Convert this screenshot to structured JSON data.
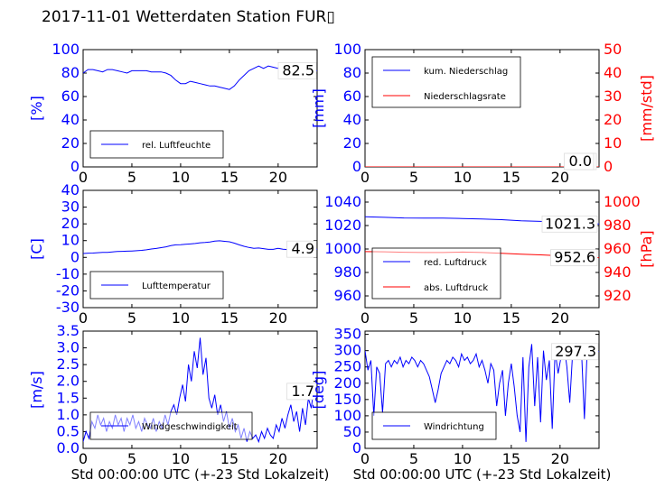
{
  "figure": {
    "title": "2017-11-01 Wetterdaten Station FUR▯",
    "x_axis_label": "Std 00:00:00 UTC (+-23 Std Lokalzeit)",
    "colors": {
      "primary": "#0000ff",
      "secondary": "#ff0000",
      "light": "#8888ff",
      "axis": "#000000"
    }
  },
  "chart_data": [
    {
      "id": "humidity",
      "type": "line",
      "ylabel": "[%]",
      "ylim": [
        0,
        100
      ],
      "yticks": [
        0,
        20,
        40,
        60,
        80,
        100
      ],
      "xlim": [
        0,
        24
      ],
      "xticks": [
        0,
        5,
        10,
        15,
        20
      ],
      "value_label": "82.5",
      "legend_position": "lower-left",
      "series": [
        {
          "name": "rel. Luftfeuchte",
          "axis": "left",
          "color": "#0000ff",
          "x": [
            0,
            0.5,
            1,
            1.5,
            2,
            2.5,
            3,
            3.5,
            4,
            4.5,
            5,
            5.5,
            6,
            6.5,
            7,
            7.5,
            8,
            8.5,
            9,
            9.5,
            10,
            10.5,
            11,
            11.5,
            12,
            12.5,
            13,
            13.5,
            14,
            14.5,
            15,
            15.5,
            16,
            16.5,
            17,
            17.5,
            18,
            18.5,
            19,
            19.5,
            20,
            20.5,
            21,
            21.5,
            22,
            22.5,
            23,
            23.5,
            24
          ],
          "y": [
            80,
            83,
            83,
            82,
            81,
            83,
            83,
            82,
            81,
            80,
            82,
            82,
            82,
            82,
            81,
            81,
            81,
            80,
            78,
            74,
            71,
            71,
            73,
            72,
            71,
            70,
            69,
            69,
            68,
            67,
            66,
            69,
            74,
            78,
            82,
            84,
            86,
            84,
            86,
            85,
            84,
            79,
            78,
            80,
            81,
            82,
            82,
            82,
            82
          ]
        }
      ]
    },
    {
      "id": "precipitation",
      "type": "line",
      "ylabel": "[mm]",
      "ylim": [
        0,
        100
      ],
      "yticks": [
        0,
        20,
        40,
        60,
        80,
        100
      ],
      "y2label": "[mm/std]",
      "y2lim": [
        0,
        50
      ],
      "y2ticks": [
        0,
        10,
        20,
        30,
        40,
        50
      ],
      "xlim": [
        0,
        24
      ],
      "xticks": [
        0,
        5,
        10,
        15,
        20
      ],
      "value_label": "0.0",
      "value_label_2": "0.0",
      "legend_position": "top-left",
      "series": [
        {
          "name": "kum. Niederschlag",
          "axis": "left",
          "color": "#0000ff",
          "x": [
            0,
            24
          ],
          "y": [
            0,
            0
          ]
        },
        {
          "name": "Niederschlagsrate",
          "axis": "right",
          "color": "#ff0000",
          "x": [
            0,
            24
          ],
          "y": [
            0,
            0
          ]
        }
      ]
    },
    {
      "id": "temperature",
      "type": "line",
      "ylabel": "[C]",
      "ylim": [
        -30,
        40
      ],
      "yticks": [
        -30,
        -20,
        -10,
        0,
        10,
        20,
        30,
        40
      ],
      "xlim": [
        0,
        24
      ],
      "xticks": [
        0,
        5,
        10,
        15,
        20
      ],
      "value_label": "4.9",
      "legend_position": "lower-left",
      "series": [
        {
          "name": "Lufttemperatur",
          "axis": "left",
          "color": "#0000ff",
          "x": [
            0,
            0.5,
            1,
            1.5,
            2,
            2.5,
            3,
            3.5,
            4,
            4.5,
            5,
            5.5,
            6,
            6.5,
            7,
            7.5,
            8,
            8.5,
            9,
            9.5,
            10,
            10.5,
            11,
            11.5,
            12,
            12.5,
            13,
            13.5,
            14,
            14.5,
            15,
            15.5,
            16,
            16.5,
            17,
            17.5,
            18,
            18.5,
            19,
            19.5,
            20,
            20.5,
            21,
            21.5,
            22,
            22.5,
            23,
            23.5,
            24
          ],
          "y": [
            2.3,
            2.5,
            2.6,
            2.8,
            3.0,
            3.0,
            3.3,
            3.5,
            3.6,
            3.7,
            3.8,
            4.0,
            4.2,
            4.5,
            5.0,
            5.3,
            5.8,
            6.3,
            7.0,
            7.5,
            7.6,
            7.8,
            8.0,
            8.3,
            8.7,
            8.9,
            9.2,
            9.7,
            9.9,
            9.6,
            9.3,
            8.5,
            7.5,
            6.6,
            5.9,
            5.4,
            5.6,
            5.2,
            4.8,
            4.8,
            5.4,
            4.9,
            4.7,
            5.0,
            5.0,
            4.8,
            5.0,
            4.9,
            4.9
          ]
        }
      ]
    },
    {
      "id": "pressure",
      "type": "line",
      "ylabel": "",
      "ylim": [
        950,
        1050
      ],
      "yticks": [
        960,
        980,
        1000,
        1020,
        1040
      ],
      "y2label": "[hPa]",
      "y2lim": [
        910,
        1010
      ],
      "y2ticks": [
        920,
        940,
        960,
        980,
        1000
      ],
      "xlim": [
        0,
        24
      ],
      "xticks": [
        0,
        5,
        10,
        15,
        20
      ],
      "value_label": "1021.3",
      "value_label_2": "952.6",
      "legend_position": "lower-left",
      "series": [
        {
          "name": "red. Luftdruck",
          "axis": "left",
          "color": "#0000ff",
          "x": [
            0,
            2,
            4,
            6,
            8,
            10,
            12,
            14,
            16,
            18,
            20,
            22,
            24
          ],
          "y": [
            1027.5,
            1027.0,
            1026.5,
            1026.3,
            1026.3,
            1026.0,
            1025.5,
            1025.0,
            1024.0,
            1023.5,
            1022.8,
            1022.0,
            1021.3
          ]
        },
        {
          "name": "abs. Luftdruck",
          "axis": "right",
          "color": "#ff0000",
          "x": [
            0,
            2,
            4,
            6,
            8,
            10,
            12,
            14,
            16,
            18,
            20,
            22,
            24
          ],
          "y": [
            957.8,
            957.6,
            957.2,
            957.0,
            957.0,
            957.4,
            957.0,
            956.3,
            955.6,
            955.0,
            954.2,
            953.4,
            952.6
          ]
        }
      ]
    },
    {
      "id": "wind_speed",
      "type": "line",
      "ylabel": "[m/s]",
      "ylim": [
        0,
        3.5
      ],
      "yticks": [
        0.0,
        0.5,
        1.0,
        1.5,
        2.0,
        2.5,
        3.0,
        3.5
      ],
      "xlim": [
        0,
        24
      ],
      "xticks": [
        0,
        5,
        10,
        15,
        20
      ],
      "value_label": "1.7",
      "legend_position": "lower-left",
      "series": [
        {
          "name": "Windgeschwindigkeit",
          "axis": "left",
          "color": "#0000ff",
          "x": [
            0,
            0.3,
            0.6,
            0.9,
            1.2,
            1.5,
            1.8,
            2.1,
            2.4,
            2.7,
            3,
            3.3,
            3.6,
            3.9,
            4.2,
            4.5,
            4.8,
            5.1,
            5.4,
            5.7,
            6,
            6.3,
            6.6,
            6.9,
            7.2,
            7.5,
            7.8,
            8.1,
            8.4,
            8.7,
            9,
            9.3,
            9.6,
            9.9,
            10.2,
            10.5,
            10.8,
            11.1,
            11.4,
            11.7,
            12,
            12.3,
            12.6,
            12.9,
            13.2,
            13.5,
            13.8,
            14.1,
            14.4,
            14.7,
            15,
            15.3,
            15.6,
            15.9,
            16.2,
            16.5,
            16.8,
            17.1,
            17.4,
            17.7,
            18,
            18.3,
            18.6,
            18.9,
            19.2,
            19.5,
            19.8,
            20.1,
            20.4,
            20.7,
            21,
            21.3,
            21.6,
            21.9,
            22.2,
            22.5,
            22.8,
            23.1,
            23.4,
            23.7,
            24
          ],
          "y": [
            0.2,
            0.5,
            0.3,
            0.8,
            0.6,
            1.0,
            0.7,
            0.9,
            0.5,
            0.8,
            0.6,
            1.0,
            0.7,
            0.9,
            0.5,
            0.9,
            0.7,
            1.0,
            0.6,
            0.8,
            0.5,
            0.9,
            0.7,
            0.6,
            0.9,
            0.5,
            0.8,
            0.6,
            1.0,
            0.7,
            1.1,
            1.3,
            1.0,
            1.5,
            1.9,
            1.4,
            2.5,
            2.0,
            2.9,
            2.4,
            3.3,
            2.2,
            2.7,
            1.5,
            1.2,
            1.6,
            1.0,
            1.3,
            0.8,
            1.1,
            0.6,
            0.9,
            0.5,
            0.7,
            0.3,
            0.6,
            0.2,
            0.5,
            0.3,
            0.4,
            0.2,
            0.5,
            0.3,
            0.6,
            0.4,
            0.3,
            0.7,
            0.5,
            0.9,
            0.6,
            1.0,
            1.3,
            0.8,
            1.1,
            0.5,
            1.2,
            0.7,
            1.5,
            1.2,
            1.9,
            1.7
          ]
        }
      ]
    },
    {
      "id": "wind_direction",
      "type": "line",
      "ylabel": "[deg]",
      "ylim": [
        0,
        360
      ],
      "yticks": [
        0,
        50,
        100,
        150,
        200,
        250,
        300,
        350
      ],
      "xlim": [
        0,
        24
      ],
      "xticks": [
        0,
        5,
        10,
        15,
        20
      ],
      "value_label": "297.3",
      "legend_position": "lower-left",
      "series": [
        {
          "name": "Windrichtung",
          "axis": "left",
          "color": "#0000ff",
          "x": [
            0,
            0.3,
            0.6,
            0.9,
            1.2,
            1.5,
            1.8,
            2.1,
            2.4,
            2.7,
            3,
            3.3,
            3.6,
            3.9,
            4.2,
            4.5,
            4.8,
            5.1,
            5.4,
            5.7,
            6,
            6.3,
            6.6,
            6.9,
            7.2,
            7.5,
            7.8,
            8.1,
            8.4,
            8.7,
            9,
            9.3,
            9.6,
            9.9,
            10.2,
            10.5,
            10.8,
            11.1,
            11.4,
            11.7,
            12,
            12.3,
            12.6,
            12.9,
            13.2,
            13.5,
            13.8,
            14.1,
            14.4,
            14.7,
            15,
            15.3,
            15.6,
            15.9,
            16.2,
            16.5,
            16.8,
            17.1,
            17.4,
            17.7,
            18,
            18.3,
            18.6,
            18.9,
            19.2,
            19.5,
            19.8,
            20.1,
            20.4,
            20.7,
            21,
            21.3,
            21.6,
            21.9,
            22.2,
            22.5,
            22.8,
            23.1,
            23.4,
            23.7,
            24
          ],
          "y": [
            300,
            240,
            270,
            100,
            250,
            230,
            110,
            260,
            270,
            250,
            270,
            260,
            280,
            250,
            270,
            260,
            280,
            270,
            250,
            270,
            260,
            240,
            220,
            180,
            140,
            180,
            230,
            250,
            270,
            260,
            280,
            270,
            250,
            290,
            270,
            280,
            260,
            270,
            290,
            250,
            270,
            240,
            200,
            260,
            240,
            130,
            200,
            240,
            100,
            200,
            260,
            190,
            100,
            50,
            280,
            20,
            250,
            320,
            130,
            280,
            80,
            300,
            210,
            270,
            60,
            300,
            230,
            280,
            320,
            250,
            140,
            300,
            320,
            290,
            300,
            90,
            310,
            290,
            280,
            300,
            297
          ]
        }
      ]
    }
  ]
}
